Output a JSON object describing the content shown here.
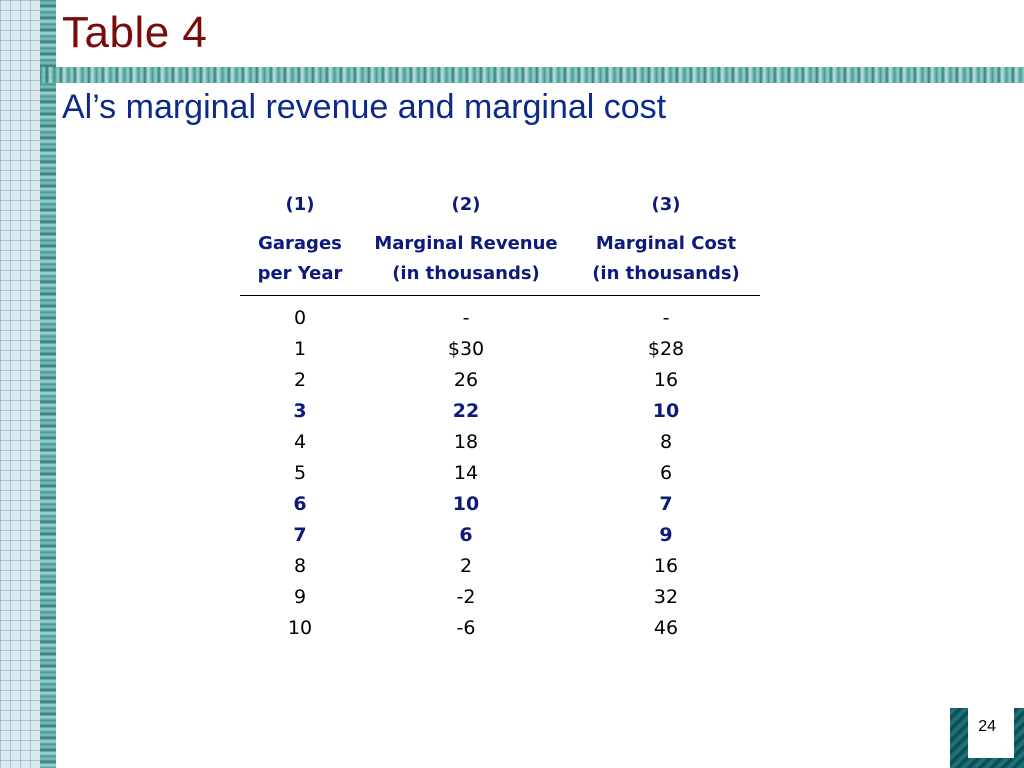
{
  "slide": {
    "title": "Table 4",
    "subtitle": "Al’s marginal revenue and marginal cost",
    "page_number": "24"
  },
  "table": {
    "column_numbers": [
      "(1)",
      "(2)",
      "(3)"
    ],
    "headers": [
      [
        "Garages",
        "per Year"
      ],
      [
        "Marginal Revenue",
        "(in thousands)"
      ],
      [
        "Marginal Cost",
        "(in thousands)"
      ]
    ],
    "rows": [
      {
        "cells": [
          "0",
          "-",
          "-"
        ],
        "highlight": false
      },
      {
        "cells": [
          "1",
          "$30",
          "$28"
        ],
        "highlight": false
      },
      {
        "cells": [
          "2",
          "26",
          "16"
        ],
        "highlight": false
      },
      {
        "cells": [
          "3",
          "22",
          "10"
        ],
        "highlight": true
      },
      {
        "cells": [
          "4",
          "18",
          "8"
        ],
        "highlight": false
      },
      {
        "cells": [
          "5",
          "14",
          "6"
        ],
        "highlight": false
      },
      {
        "cells": [
          "6",
          "10",
          "7"
        ],
        "highlight": true
      },
      {
        "cells": [
          "7",
          "6",
          "9"
        ],
        "highlight": true
      },
      {
        "cells": [
          "8",
          "2",
          "16"
        ],
        "highlight": false
      },
      {
        "cells": [
          "9",
          "-2",
          "32"
        ],
        "highlight": false
      },
      {
        "cells": [
          "10",
          "-6",
          "46"
        ],
        "highlight": false
      }
    ]
  },
  "colors": {
    "title": "#7b0a0a",
    "subtitle": "#0d2a8a",
    "header_text": "#0d1a7a",
    "highlight_text": "#0d1a7a"
  }
}
